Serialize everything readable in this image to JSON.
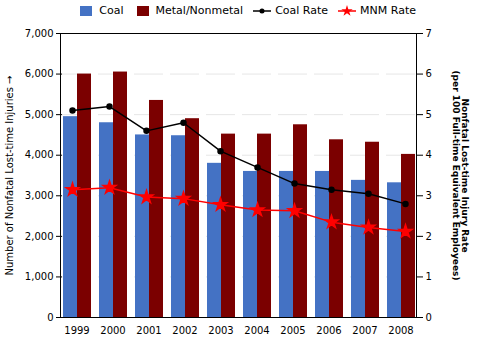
{
  "chart_data": {
    "type": "bar",
    "categories": [
      "1999",
      "2000",
      "2001",
      "2002",
      "2003",
      "2004",
      "2005",
      "2006",
      "2007",
      "2008"
    ],
    "series": [
      {
        "name": "Coal",
        "type": "bar",
        "color": "#4472C4",
        "values": [
          4950,
          4800,
          4500,
          4480,
          3800,
          3600,
          3600,
          3600,
          3380,
          3320
        ]
      },
      {
        "name": "Metal/Nonmetal",
        "type": "bar",
        "color": "#7B0000",
        "values": [
          6000,
          6050,
          5350,
          4900,
          4520,
          4520,
          4750,
          4380,
          4320,
          4020
        ]
      },
      {
        "name": "Coal Rate",
        "type": "line",
        "axis": "y2",
        "color": "#000000",
        "marker": "circle",
        "values": [
          5.1,
          5.2,
          4.6,
          4.8,
          4.1,
          3.7,
          3.3,
          3.15,
          3.05,
          2.8
        ]
      },
      {
        "name": "MNM Rate",
        "type": "line",
        "axis": "y2",
        "color": "#FF0000",
        "marker": "star",
        "values": [
          3.15,
          3.2,
          2.97,
          2.93,
          2.78,
          2.65,
          2.63,
          2.35,
          2.22,
          2.12
        ]
      }
    ],
    "ylabel": "Number of Nonfatal Lost-time Injuries",
    "y2label": "Nonfatal Lost-time Injury Rate\n(per 100 Full-time Equivalent Employees)",
    "ylim": [
      0,
      7000
    ],
    "yticks": [
      0,
      {
        "value": 1000,
        "label": "1,000"
      },
      {
        "value": 2000,
        "label": "2,000"
      },
      {
        "value": 3000,
        "label": "3,000"
      },
      {
        "value": 4000,
        "label": "4,000"
      },
      {
        "value": 5000,
        "label": "5,000"
      },
      {
        "value": 6000,
        "label": "6,000"
      },
      {
        "value": 7000,
        "label": "7,000"
      }
    ],
    "y2lim": [
      0,
      7
    ],
    "y2ticks": [
      0,
      1,
      2,
      3,
      4,
      5,
      6,
      7
    ],
    "grid": true,
    "legend": "upper right"
  }
}
